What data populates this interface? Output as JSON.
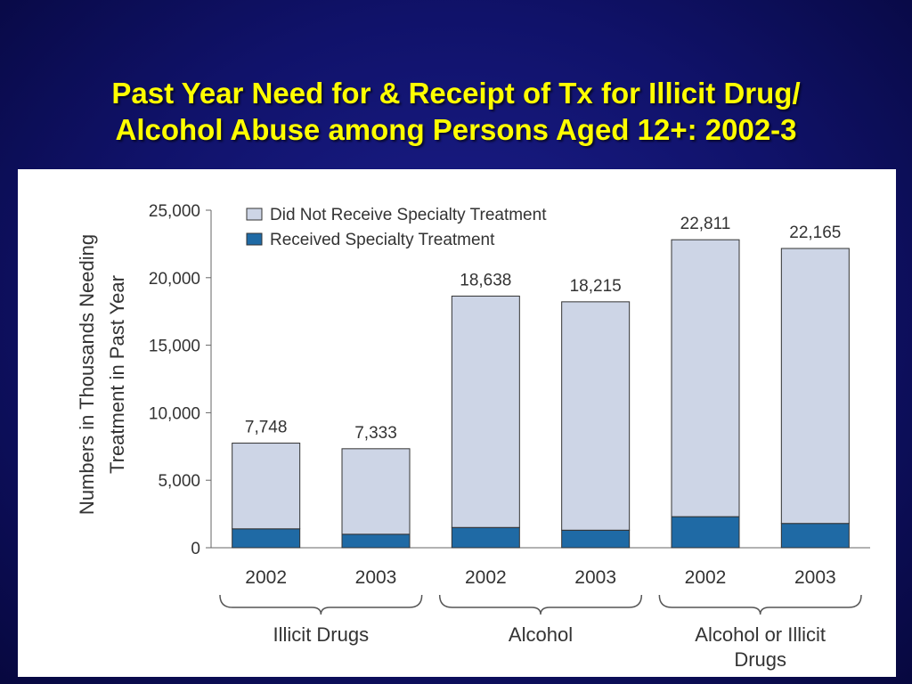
{
  "title": {
    "line1": "Past Year Need for & Receipt of Tx for Illicit Drug/",
    "line2": "Alcohol Abuse among Persons Aged 12+: 2002-3"
  },
  "colors": {
    "background": "#10126a",
    "title": "#ffff00",
    "did_not_receive": "#cdd5e6",
    "received": "#1f6aa5"
  },
  "chart_data": {
    "type": "bar",
    "stacked": true,
    "categories": [
      "2002",
      "2003",
      "2002",
      "2003",
      "2002",
      "2003"
    ],
    "groups": [
      {
        "label": "Illicit Drugs",
        "categories": [
          0,
          1
        ]
      },
      {
        "label": "Alcohol",
        "categories": [
          2,
          3
        ]
      },
      {
        "label": "Alcohol or Illicit Drugs",
        "categories": [
          4,
          5
        ]
      }
    ],
    "series": [
      {
        "name": "Received Specialty Treatment",
        "values": [
          1400,
          1000,
          1500,
          1300,
          2300,
          1800
        ]
      },
      {
        "name": "Did Not Receive Specialty Treatment",
        "values": [
          6348,
          6333,
          17138,
          16915,
          20511,
          20365
        ]
      }
    ],
    "totals": [
      7748,
      7333,
      18638,
      18215,
      22811,
      22165
    ],
    "total_labels": [
      "7,748",
      "7,333",
      "18,638",
      "18,215",
      "22,811",
      "22,165"
    ],
    "ylabel": "Numbers in Thousands Needing Treatment in Past Year",
    "ylabel_lines": [
      "Numbers in Thousands Needing",
      "Treatment in Past Year"
    ],
    "ylim": [
      0,
      25000
    ],
    "yticks": [
      0,
      5000,
      10000,
      15000,
      20000,
      25000
    ],
    "ytick_labels": [
      "0",
      "5,000",
      "10,000",
      "15,000",
      "20,000",
      "25,000"
    ],
    "legend": {
      "placement": "top-left",
      "entries": [
        "Did Not Receive Specialty Treatment",
        "Received Specialty Treatment"
      ]
    },
    "grid": false
  }
}
